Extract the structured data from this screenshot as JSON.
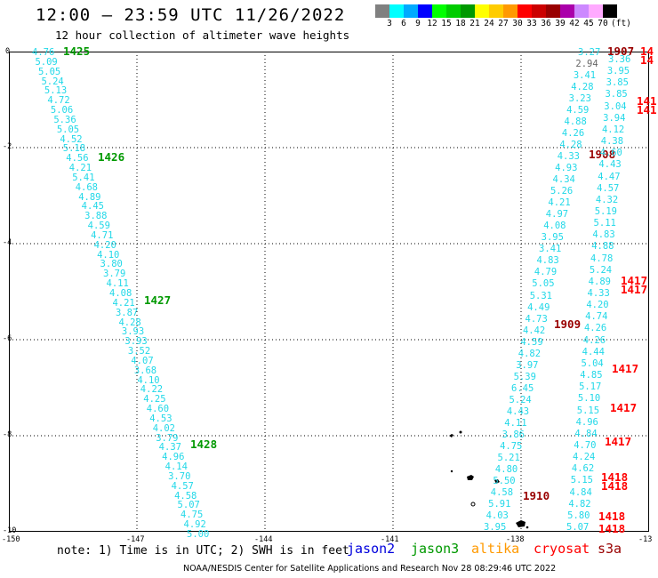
{
  "header": {
    "title": "12:00 — 23:59 UTC 11/26/2022",
    "subtitle": "12 hour collection of altimeter wave heights"
  },
  "colorbar": {
    "colors": [
      "#808080",
      "#00ffff",
      "#00aaff",
      "#0000ff",
      "#00ff00",
      "#00cc00",
      "#009900",
      "#ffff00",
      "#ffcc00",
      "#ff9900",
      "#ff0000",
      "#cc0000",
      "#990000",
      "#aa00aa",
      "#cc88ff",
      "#ffaaff",
      "#000000"
    ],
    "labels": [
      "3",
      "6",
      "9",
      "12",
      "15",
      "18",
      "21",
      "24",
      "27",
      "30",
      "33",
      "36",
      "39",
      "42",
      "45",
      "70",
      "(ft)"
    ]
  },
  "axes": {
    "x_ticks": [
      "-150",
      "-147",
      "-144",
      "-141",
      "-138",
      "-13"
    ],
    "y_ticks": [
      "0",
      "-2",
      "-4",
      "-6",
      "-8",
      "-10"
    ]
  },
  "track_west": {
    "heights": [
      "4.76",
      "5.09",
      "5.05",
      "5.24",
      "5.13",
      "4.72",
      "5.06",
      "5.36",
      "5.05",
      "4.52",
      "5.18",
      "4.56",
      "4.21",
      "5.41",
      "4.68",
      "4.89",
      "4.45",
      "3.88",
      "4.59",
      "4.71",
      "4.20",
      "4.10",
      "3.80",
      "3.79",
      "4.11",
      "4.08",
      "4.21",
      "3.87",
      "4.28",
      "3.93",
      "3.93",
      "3.52",
      "4.07",
      "3.68",
      "4.10",
      "4.22",
      "4.25",
      "4.60",
      "4.53",
      "4.02",
      "3.79",
      "4.37",
      "4.96",
      "4.14",
      "3.70",
      "4.57",
      "4.58",
      "5.07",
      "4.75",
      "4.92",
      "5.00"
    ],
    "times": [
      "1425",
      "1426",
      "1427",
      "1428"
    ]
  },
  "track_east1": {
    "heights": [
      "3.27",
      "2.94",
      "3.41",
      "4.28",
      "3.23",
      "4.59",
      "4.88",
      "4.26",
      "4.28",
      "4.33",
      "4.93",
      "4.34",
      "5.26",
      "4.21",
      "4.97",
      "4.08",
      "3.95",
      "3.41",
      "4.83",
      "4.79",
      "5.05",
      "5.31",
      "4.49",
      "4.73",
      "4.42",
      "4.59",
      "4.82",
      "3.97",
      "5.39",
      "6.45",
      "5.24",
      "4.43",
      "4.11",
      "3.86",
      "4.75",
      "5.21",
      "4.80",
      "5.50",
      "4.58",
      "5.91",
      "4.03",
      "3.95"
    ],
    "times": [
      "1907",
      "1908",
      "1909",
      "1910"
    ]
  },
  "track_east2": {
    "heights": [
      "3.36",
      "3.95",
      "3.85",
      "3.85",
      "3.04",
      "3.94",
      "4.12",
      "4.38",
      "4.60",
      "4.43",
      "4.47",
      "4.57",
      "4.32",
      "5.19",
      "5.11",
      "4.83",
      "4.88",
      "4.78",
      "5.24",
      "4.89",
      "4.33",
      "4.20",
      "4.74",
      "4.26",
      "4.26",
      "4.44",
      "5.04",
      "4.85",
      "5.17",
      "5.10",
      "5.15",
      "4.96",
      "4.84",
      "4.70",
      "4.24",
      "4.62",
      "5.15",
      "4.84",
      "4.82",
      "5.80",
      "5.07"
    ],
    "times": [
      "14",
      "14",
      "141",
      "141",
      "1417",
      "1417",
      "1417",
      "1417",
      "1417",
      "1418",
      "1418",
      "1418",
      "1418"
    ]
  },
  "footer": {
    "note": "note: 1) Time is in UTC; 2) SWH is in feet",
    "satellites": [
      {
        "name": "jason2",
        "color": "#0000dd"
      },
      {
        "name": "jason3",
        "color": "#009900"
      },
      {
        "name": "altika",
        "color": "#ff9900"
      },
      {
        "name": "cryosat",
        "color": "#ff0000"
      },
      {
        "name": "s3a",
        "color": "#990000"
      }
    ],
    "credit": "NOAA/NESDIS Center for Satellite Applications and Research   Nov 28 08:29:46 UTC 2022"
  }
}
